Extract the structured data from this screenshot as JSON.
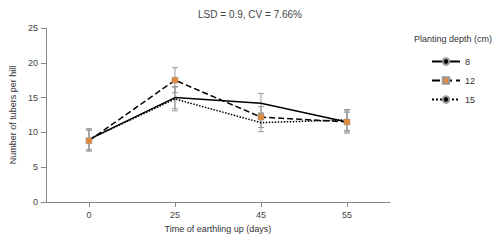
{
  "chart_data": {
    "type": "line",
    "title": "LSD = 0.9, CV = 7.66%",
    "x_label": "Time of earthling up (days)",
    "y_label": "Number of tubers per hill",
    "legend_title": "Planting depth (cm)",
    "categories": [
      "0",
      "25",
      "45",
      "55"
    ],
    "ylim": [
      0,
      25
    ],
    "yticks": [
      0,
      5,
      10,
      15,
      20,
      25
    ],
    "grid": false,
    "legend": "right",
    "series": [
      {
        "name": "8",
        "color": "#000000",
        "line_style": "solid",
        "marker": "none",
        "values": [
          9.0,
          15.0,
          14.2,
          11.5
        ],
        "errors": [
          1.5,
          1.6,
          1.4,
          1.4
        ]
      },
      {
        "name": "12",
        "color": "#000000",
        "line_style": "dashed",
        "marker": "square",
        "values": [
          8.8,
          17.5,
          12.2,
          11.5
        ],
        "errors": [
          1.5,
          1.8,
          1.5,
          1.6
        ]
      },
      {
        "name": "15",
        "color": "#000000",
        "line_style": "dotted",
        "marker": "none",
        "values": [
          9.0,
          14.8,
          11.4,
          11.8
        ],
        "errors": [
          1.5,
          1.7,
          1.3,
          1.5
        ]
      }
    ]
  }
}
